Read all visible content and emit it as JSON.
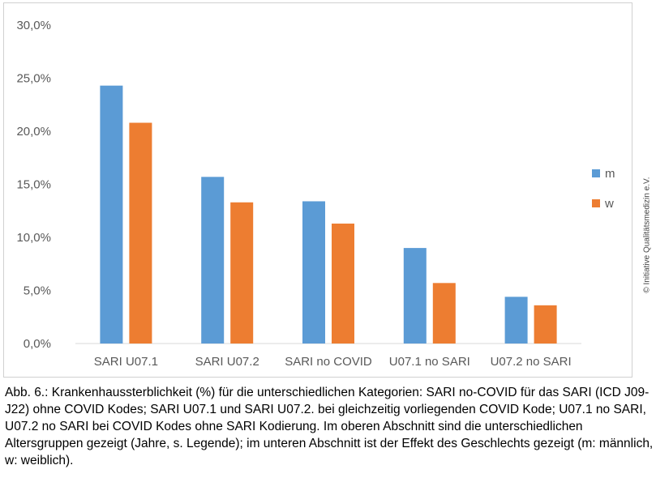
{
  "chart_data": {
    "type": "bar",
    "categories": [
      "SARI U07.1",
      "SARI U07.2",
      "SARI no COVID",
      "U07.1 no SARI",
      "U07.2 no SARI"
    ],
    "series": [
      {
        "name": "m",
        "values": [
          24.3,
          15.7,
          13.4,
          9.0,
          4.4
        ],
        "color": "#5b9bd5"
      },
      {
        "name": "w",
        "values": [
          20.8,
          13.3,
          11.3,
          5.7,
          3.6
        ],
        "color": "#ed7d31"
      }
    ],
    "y_ticks": [
      "0,0%",
      "5,0%",
      "10,0%",
      "15,0%",
      "20,0%",
      "25,0%",
      "30,0%"
    ],
    "ylim": [
      0,
      30
    ],
    "grid": false,
    "legend": "right"
  },
  "caption": "Abb. 6.: Krankenhaussterblichkeit (%) für die unterschiedlichen Kategorien: SARI no-COVID für das SARI (ICD J09-J22) ohne COVID Kodes; SARI U07.1 und SARI U07.2. bei gleichzeitig vorliegenden COVID Kode; U07.1 no SARI, U07.2 no SARI bei COVID Kodes ohne SARI Kodierung. Im oberen Abschnitt sind die unterschiedlichen Altersgruppen gezeigt (Jahre, s. Legende); im unteren Abschnitt ist der Effekt des Geschlechts gezeigt (m: männlich, w: weiblich).",
  "watermark": "© Initiative Qualitätsmedizin e.V."
}
